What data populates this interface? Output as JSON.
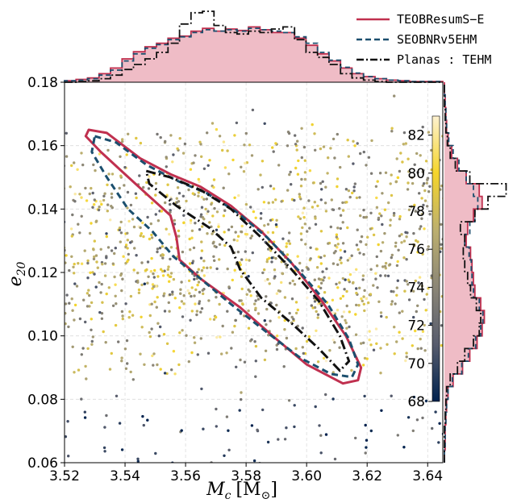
{
  "chart_data": {
    "type": "scatter",
    "x_data_label": "Mc",
    "y_data_label": "e20",
    "xlim": [
      3.52,
      3.645
    ],
    "ylim": [
      0.06,
      0.18
    ],
    "xticks": [
      "3.52",
      "3.54",
      "3.56",
      "3.58",
      "3.60",
      "3.62",
      "3.64"
    ],
    "yticks": [
      "0.06",
      "0.08",
      "0.10",
      "0.12",
      "0.14",
      "0.16",
      "0.18"
    ],
    "xlabel_text": "M",
    "xlabel_sub": "c",
    "xlabel_unit": "[M",
    "xlabel_unit_sub": "⊙",
    "xlabel_close": "]",
    "ylabel_text": "e",
    "ylabel_sub": "20",
    "grid": true,
    "legend_position": "top-right",
    "colorbar": {
      "range": [
        68,
        83
      ],
      "ticks": [
        "68",
        "70",
        "72",
        "74",
        "76",
        "78",
        "80",
        "82"
      ],
      "colors": [
        "#00224e",
        "#575c6d",
        "#8b8677",
        "#bcaf6f",
        "#f5d52b",
        "#fdf1cf"
      ]
    },
    "series": [
      {
        "name": "TEOBResumS−E",
        "color": "#c0304f",
        "style": "solid",
        "contour": [
          [
            3.528,
            0.165
          ],
          [
            3.534,
            0.164
          ],
          [
            3.545,
            0.156
          ],
          [
            3.555,
            0.151
          ],
          [
            3.565,
            0.147
          ],
          [
            3.575,
            0.141
          ],
          [
            3.585,
            0.133
          ],
          [
            3.595,
            0.123
          ],
          [
            3.605,
            0.111
          ],
          [
            3.613,
            0.1
          ],
          [
            3.618,
            0.09
          ],
          [
            3.617,
            0.086
          ],
          [
            3.612,
            0.085
          ],
          [
            3.6,
            0.091
          ],
          [
            3.59,
            0.099
          ],
          [
            3.578,
            0.109
          ],
          [
            3.565,
            0.118
          ],
          [
            3.558,
            0.124
          ],
          [
            3.557,
            0.131
          ],
          [
            3.555,
            0.138
          ],
          [
            3.548,
            0.144
          ],
          [
            3.54,
            0.151
          ],
          [
            3.532,
            0.158
          ],
          [
            3.527,
            0.163
          ]
        ]
      },
      {
        "name": "SEOBNRv5EHM",
        "color": "#1b4f6e",
        "style": "dashed",
        "contour": [
          [
            3.53,
            0.163
          ],
          [
            3.537,
            0.161
          ],
          [
            3.547,
            0.154
          ],
          [
            3.557,
            0.149
          ],
          [
            3.567,
            0.145
          ],
          [
            3.577,
            0.139
          ],
          [
            3.587,
            0.131
          ],
          [
            3.597,
            0.121
          ],
          [
            3.607,
            0.11
          ],
          [
            3.614,
            0.099
          ],
          [
            3.617,
            0.091
          ],
          [
            3.615,
            0.087
          ],
          [
            3.608,
            0.088
          ],
          [
            3.598,
            0.093
          ],
          [
            3.587,
            0.101
          ],
          [
            3.575,
            0.11
          ],
          [
            3.565,
            0.118
          ],
          [
            3.556,
            0.125
          ],
          [
            3.549,
            0.133
          ],
          [
            3.541,
            0.14
          ],
          [
            3.534,
            0.15
          ],
          [
            3.529,
            0.158
          ]
        ]
      },
      {
        "name": "Planas : TEHM",
        "color": "#111111",
        "style": "dashdot",
        "contour": [
          [
            3.547,
            0.152
          ],
          [
            3.555,
            0.15
          ],
          [
            3.565,
            0.146
          ],
          [
            3.575,
            0.14
          ],
          [
            3.585,
            0.131
          ],
          [
            3.595,
            0.121
          ],
          [
            3.604,
            0.111
          ],
          [
            3.611,
            0.1
          ],
          [
            3.614,
            0.092
          ],
          [
            3.611,
            0.089
          ],
          [
            3.604,
            0.096
          ],
          [
            3.595,
            0.104
          ],
          [
            3.585,
            0.112
          ],
          [
            3.578,
            0.121
          ],
          [
            3.575,
            0.128
          ],
          [
            3.568,
            0.134
          ],
          [
            3.557,
            0.141
          ],
          [
            3.548,
            0.148
          ]
        ]
      }
    ],
    "top_marginal": {
      "bins_x": [
        3.52,
        3.5238,
        3.5276,
        3.5314,
        3.5352,
        3.539,
        3.5428,
        3.5466,
        3.5504,
        3.5542,
        3.558,
        3.5618,
        3.5656,
        3.5694,
        3.5732,
        3.577,
        3.5808,
        3.5846,
        3.5884,
        3.5922,
        3.596,
        3.5998,
        3.6036,
        3.6074,
        3.6112,
        3.615,
        3.6188,
        3.6226,
        3.6264,
        3.6302,
        3.634,
        3.6378,
        3.6416,
        3.645
      ],
      "teob": [
        0.02,
        0.04,
        0.06,
        0.12,
        0.2,
        0.33,
        0.43,
        0.5,
        0.55,
        0.62,
        0.65,
        0.72,
        0.76,
        0.72,
        0.75,
        0.73,
        0.78,
        0.74,
        0.7,
        0.7,
        0.62,
        0.52,
        0.4,
        0.3,
        0.2,
        0.12,
        0.08,
        0.05,
        0.03,
        0.02,
        0.01,
        0.01,
        0.01
      ],
      "seob": [
        0.02,
        0.03,
        0.05,
        0.1,
        0.17,
        0.3,
        0.4,
        0.48,
        0.53,
        0.6,
        0.64,
        0.7,
        0.74,
        0.72,
        0.74,
        0.72,
        0.76,
        0.74,
        0.72,
        0.7,
        0.64,
        0.55,
        0.42,
        0.31,
        0.21,
        0.13,
        0.08,
        0.05,
        0.03,
        0.02,
        0.01,
        0.01,
        0.01
      ],
      "planas": [
        0.0,
        0.01,
        0.02,
        0.05,
        0.1,
        0.18,
        0.25,
        0.33,
        0.42,
        0.55,
        0.82,
        0.98,
        1.0,
        0.8,
        0.7,
        0.68,
        0.72,
        0.7,
        0.75,
        0.78,
        0.6,
        0.42,
        0.35,
        0.25,
        0.12,
        0.06,
        0.03,
        0.01,
        0.0,
        0.0,
        0.0,
        0.0,
        0.0
      ]
    },
    "right_marginal": {
      "bins_y": [
        0.06,
        0.064,
        0.068,
        0.072,
        0.076,
        0.08,
        0.084,
        0.088,
        0.092,
        0.096,
        0.1,
        0.104,
        0.108,
        0.112,
        0.116,
        0.12,
        0.124,
        0.128,
        0.132,
        0.136,
        0.14,
        0.144,
        0.148,
        0.152,
        0.156,
        0.16,
        0.164,
        0.168,
        0.172,
        0.176,
        0.18
      ],
      "teob": [
        0.0,
        0.01,
        0.01,
        0.02,
        0.03,
        0.05,
        0.12,
        0.25,
        0.35,
        0.45,
        0.52,
        0.55,
        0.5,
        0.42,
        0.4,
        0.38,
        0.36,
        0.3,
        0.32,
        0.4,
        0.52,
        0.48,
        0.3,
        0.18,
        0.1,
        0.05,
        0.03,
        0.02,
        0.01,
        0.0
      ],
      "seob": [
        0.0,
        0.01,
        0.01,
        0.02,
        0.03,
        0.05,
        0.11,
        0.24,
        0.33,
        0.43,
        0.5,
        0.53,
        0.48,
        0.4,
        0.38,
        0.37,
        0.34,
        0.28,
        0.35,
        0.42,
        0.46,
        0.4,
        0.3,
        0.2,
        0.12,
        0.06,
        0.03,
        0.02,
        0.01,
        0.0
      ],
      "planas": [
        0.0,
        0.0,
        0.0,
        0.01,
        0.02,
        0.03,
        0.08,
        0.18,
        0.28,
        0.4,
        0.48,
        0.5,
        0.44,
        0.36,
        0.32,
        0.28,
        0.26,
        0.28,
        0.22,
        0.42,
        0.6,
        0.85,
        0.35,
        0.15,
        0.08,
        0.04,
        0.02,
        0.01,
        0.0,
        0.0
      ]
    }
  }
}
